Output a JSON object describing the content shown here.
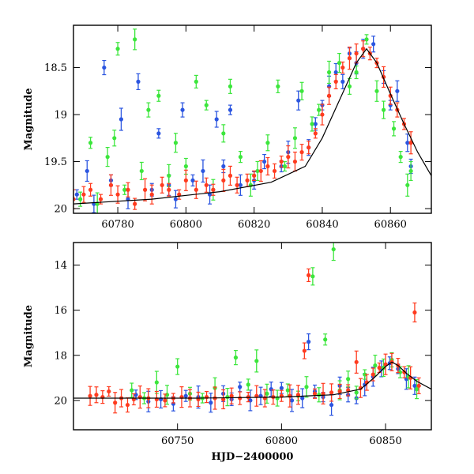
{
  "chart_data": [
    {
      "type": "scatter",
      "title": "",
      "xlabel": "",
      "ylabel": "Magnitude",
      "xlim": [
        60767,
        60872
      ],
      "ylim": [
        20.05,
        18.05
      ],
      "y_inverted": true,
      "xticks": [
        60780,
        60800,
        60820,
        60840,
        60860
      ],
      "yticks": [
        18.5,
        19,
        19.5,
        20
      ],
      "ytick_labels": [
        "18.5",
        "19",
        "19.5",
        "20"
      ],
      "grid": false,
      "model_curve": {
        "color": "#000000",
        "x": [
          60767,
          60790,
          60810,
          60825,
          60835,
          60840,
          60845,
          60850,
          60853,
          60856,
          60860,
          60864,
          60868,
          60872
        ],
        "y": [
          19.95,
          19.9,
          19.82,
          19.72,
          19.55,
          19.25,
          18.85,
          18.45,
          18.3,
          18.45,
          18.78,
          19.1,
          19.4,
          19.65
        ]
      },
      "series": [
        {
          "color": "#2b55e0",
          "points": [
            [
              60768,
              19.85
            ],
            [
              60771,
              19.6
            ],
            [
              60773,
              19.95
            ],
            [
              60776,
              18.5
            ],
            [
              60778,
              19.7
            ],
            [
              60781,
              19.05
            ],
            [
              60783,
              19.9
            ],
            [
              60786,
              18.65
            ],
            [
              60790,
              19.8
            ],
            [
              60792,
              19.2
            ],
            [
              60795,
              19.75
            ],
            [
              60797,
              19.9
            ],
            [
              60799,
              18.95
            ],
            [
              60802,
              19.7
            ],
            [
              60805,
              19.6
            ],
            [
              60807,
              19.85
            ],
            [
              60809,
              19.05
            ],
            [
              60811,
              19.55
            ],
            [
              60813,
              18.95
            ],
            [
              60816,
              19.75
            ],
            [
              60820,
              19.7
            ],
            [
              60823,
              19.5
            ],
            [
              60828,
              19.55
            ],
            [
              60830,
              19.4
            ],
            [
              60833,
              18.85
            ],
            [
              60836,
              19.35
            ],
            [
              60838,
              19.1
            ],
            [
              60840,
              18.9
            ],
            [
              60842,
              18.7
            ],
            [
              60844,
              18.55
            ],
            [
              60846,
              18.65
            ],
            [
              60848,
              18.35
            ],
            [
              60850,
              18.45
            ],
            [
              60852,
              18.3
            ],
            [
              60855,
              18.25
            ],
            [
              60858,
              18.6
            ],
            [
              60860,
              18.9
            ],
            [
              60862,
              18.75
            ],
            [
              60865,
              19.3
            ],
            [
              60866,
              19.55
            ]
          ]
        },
        {
          "color": "#3ce63c",
          "points": [
            [
              60769,
              19.9
            ],
            [
              60772,
              19.3
            ],
            [
              60774,
              19.95
            ],
            [
              60777,
              19.45
            ],
            [
              60779,
              19.25
            ],
            [
              60780,
              18.3
            ],
            [
              60782,
              19.8
            ],
            [
              60785,
              18.2
            ],
            [
              60787,
              19.6
            ],
            [
              60789,
              18.95
            ],
            [
              60792,
              18.8
            ],
            [
              60795,
              19.65
            ],
            [
              60797,
              19.3
            ],
            [
              60800,
              19.55
            ],
            [
              60803,
              18.65
            ],
            [
              60806,
              18.9
            ],
            [
              60808,
              19.8
            ],
            [
              60811,
              19.2
            ],
            [
              60813,
              18.7
            ],
            [
              60816,
              19.45
            ],
            [
              60819,
              19.75
            ],
            [
              60821,
              19.6
            ],
            [
              60824,
              19.3
            ],
            [
              60827,
              18.7
            ],
            [
              60829,
              19.55
            ],
            [
              60832,
              19.25
            ],
            [
              60834,
              18.75
            ],
            [
              60837,
              19.1
            ],
            [
              60839,
              18.95
            ],
            [
              60842,
              18.55
            ],
            [
              60845,
              18.45
            ],
            [
              60848,
              18.7
            ],
            [
              60850,
              18.55
            ],
            [
              60853,
              18.2
            ],
            [
              60856,
              18.75
            ],
            [
              60858,
              18.95
            ],
            [
              60861,
              19.15
            ],
            [
              60863,
              19.45
            ],
            [
              60865,
              19.75
            ],
            [
              60866,
              19.6
            ]
          ]
        },
        {
          "color": "#ff3b1f",
          "points": [
            [
              60767,
              19.9
            ],
            [
              60770,
              19.85
            ],
            [
              60772,
              19.8
            ],
            [
              60775,
              19.9
            ],
            [
              60778,
              19.75
            ],
            [
              60780,
              19.85
            ],
            [
              60783,
              19.8
            ],
            [
              60785,
              19.95
            ],
            [
              60788,
              19.8
            ],
            [
              60790,
              19.85
            ],
            [
              60793,
              19.75
            ],
            [
              60795,
              19.8
            ],
            [
              60798,
              19.85
            ],
            [
              60800,
              19.7
            ],
            [
              60803,
              19.8
            ],
            [
              60806,
              19.75
            ],
            [
              60808,
              19.8
            ],
            [
              60811,
              19.7
            ],
            [
              60813,
              19.65
            ],
            [
              60815,
              19.75
            ],
            [
              60818,
              19.7
            ],
            [
              60820,
              19.65
            ],
            [
              60822,
              19.6
            ],
            [
              60824,
              19.55
            ],
            [
              60826,
              19.6
            ],
            [
              60828,
              19.5
            ],
            [
              60830,
              19.45
            ],
            [
              60832,
              19.5
            ],
            [
              60834,
              19.4
            ],
            [
              60836,
              19.35
            ],
            [
              60838,
              19.2
            ],
            [
              60840,
              19.0
            ],
            [
              60842,
              18.8
            ],
            [
              60844,
              18.65
            ],
            [
              60846,
              18.5
            ],
            [
              60848,
              18.4
            ],
            [
              60850,
              18.35
            ],
            [
              60852,
              18.3
            ],
            [
              60854,
              18.35
            ],
            [
              60856,
              18.45
            ],
            [
              60858,
              18.6
            ],
            [
              60860,
              18.8
            ],
            [
              60862,
              18.95
            ],
            [
              60864,
              19.1
            ],
            [
              60866,
              19.3
            ]
          ]
        }
      ]
    },
    {
      "type": "scatter",
      "title": "",
      "xlabel": "HJD−2400000",
      "ylabel": "Magnitude",
      "xlim": [
        60700,
        60872
      ],
      "ylim": [
        21.3,
        13.0
      ],
      "y_inverted": true,
      "xticks": [
        60750,
        60800,
        60850
      ],
      "yticks": [
        14,
        16,
        18,
        20
      ],
      "ytick_labels": [
        "14",
        "16",
        "18",
        "20"
      ],
      "grid": false,
      "model_curve": {
        "color": "#000000",
        "x": [
          60700,
          60760,
          60800,
          60825,
          60838,
          60845,
          60850,
          60853,
          60856,
          60860,
          60865,
          60872
        ],
        "y": [
          19.9,
          19.9,
          19.85,
          19.75,
          19.5,
          18.95,
          18.5,
          18.3,
          18.45,
          18.8,
          19.15,
          19.5
        ]
      },
      "series": [
        {
          "color": "#2b55e0",
          "points": [
            [
              60730,
              19.75
            ],
            [
              60736,
              20.05
            ],
            [
              60742,
              19.95
            ],
            [
              60748,
              20.15
            ],
            [
              60754,
              19.8
            ],
            [
              60760,
              19.85
            ],
            [
              60766,
              20.1
            ],
            [
              60772,
              19.7
            ],
            [
              60776,
              19.95
            ],
            [
              60780,
              19.4
            ],
            [
              60785,
              20.0
            ],
            [
              60790,
              19.8
            ],
            [
              60795,
              19.5
            ],
            [
              60800,
              19.45
            ],
            [
              60805,
              20.0
            ],
            [
              60810,
              19.9
            ],
            [
              60813,
              17.4
            ],
            [
              60816,
              19.6
            ],
            [
              60820,
              19.85
            ],
            [
              60824,
              20.2
            ],
            [
              60828,
              19.35
            ],
            [
              60832,
              19.75
            ],
            [
              60836,
              19.9
            ],
            [
              60840,
              19.3
            ],
            [
              60844,
              18.95
            ],
            [
              60848,
              18.6
            ],
            [
              60852,
              18.35
            ],
            [
              60856,
              18.6
            ],
            [
              60860,
              19.05
            ],
            [
              60864,
              19.35
            ]
          ]
        },
        {
          "color": "#3ce63c",
          "points": [
            [
              60728,
              19.55
            ],
            [
              60734,
              19.9
            ],
            [
              60740,
              19.2
            ],
            [
              60745,
              19.75
            ],
            [
              60750,
              18.5
            ],
            [
              60756,
              19.7
            ],
            [
              60762,
              19.9
            ],
            [
              60768,
              19.45
            ],
            [
              60774,
              19.85
            ],
            [
              60778,
              18.1
            ],
            [
              60784,
              19.3
            ],
            [
              60788,
              18.25
            ],
            [
              60793,
              19.7
            ],
            [
              60798,
              19.9
            ],
            [
              60803,
              19.55
            ],
            [
              60808,
              19.8
            ],
            [
              60812,
              19.4
            ],
            [
              60815,
              14.5
            ],
            [
              60818,
              19.75
            ],
            [
              60821,
              17.3
            ],
            [
              60825,
              13.3
            ],
            [
              60828,
              19.55
            ],
            [
              60832,
              19.05
            ],
            [
              60836,
              19.65
            ],
            [
              60840,
              18.85
            ],
            [
              60845,
              18.45
            ],
            [
              60849,
              18.55
            ],
            [
              60853,
              18.2
            ],
            [
              60857,
              18.75
            ],
            [
              60861,
              18.95
            ],
            [
              60865,
              19.5
            ]
          ]
        },
        {
          "color": "#ff3b1f",
          "points": [
            [
              60708,
              19.8
            ],
            [
              60711,
              19.75
            ],
            [
              60714,
              19.85
            ],
            [
              60717,
              19.6
            ],
            [
              60720,
              20.1
            ],
            [
              60723,
              19.9
            ],
            [
              60726,
              20.2
            ],
            [
              60729,
              19.95
            ],
            [
              60732,
              19.85
            ],
            [
              60736,
              19.9
            ],
            [
              60740,
              19.95
            ],
            [
              60744,
              20.0
            ],
            [
              60748,
              19.9
            ],
            [
              60752,
              19.85
            ],
            [
              60756,
              19.9
            ],
            [
              60760,
              19.95
            ],
            [
              60764,
              19.85
            ],
            [
              60768,
              19.9
            ],
            [
              60772,
              19.95
            ],
            [
              60776,
              19.8
            ],
            [
              60780,
              19.9
            ],
            [
              60784,
              19.85
            ],
            [
              60788,
              19.8
            ],
            [
              60792,
              19.9
            ],
            [
              60796,
              19.85
            ],
            [
              60800,
              19.8
            ],
            [
              60804,
              19.8
            ],
            [
              60808,
              19.75
            ],
            [
              60811,
              17.8
            ],
            [
              60813,
              14.45
            ],
            [
              60816,
              19.7
            ],
            [
              60820,
              19.7
            ],
            [
              60824,
              19.65
            ],
            [
              60828,
              19.6
            ],
            [
              60832,
              19.55
            ],
            [
              60836,
              18.3
            ],
            [
              60838,
              19.45
            ],
            [
              60841,
              19.2
            ],
            [
              60844,
              18.85
            ],
            [
              60847,
              18.55
            ],
            [
              60850,
              18.4
            ],
            [
              60853,
              18.3
            ],
            [
              60856,
              18.45
            ],
            [
              60859,
              18.75
            ],
            [
              60862,
              19.0
            ],
            [
              60864,
              16.1
            ],
            [
              60866,
              19.35
            ]
          ]
        }
      ]
    }
  ]
}
